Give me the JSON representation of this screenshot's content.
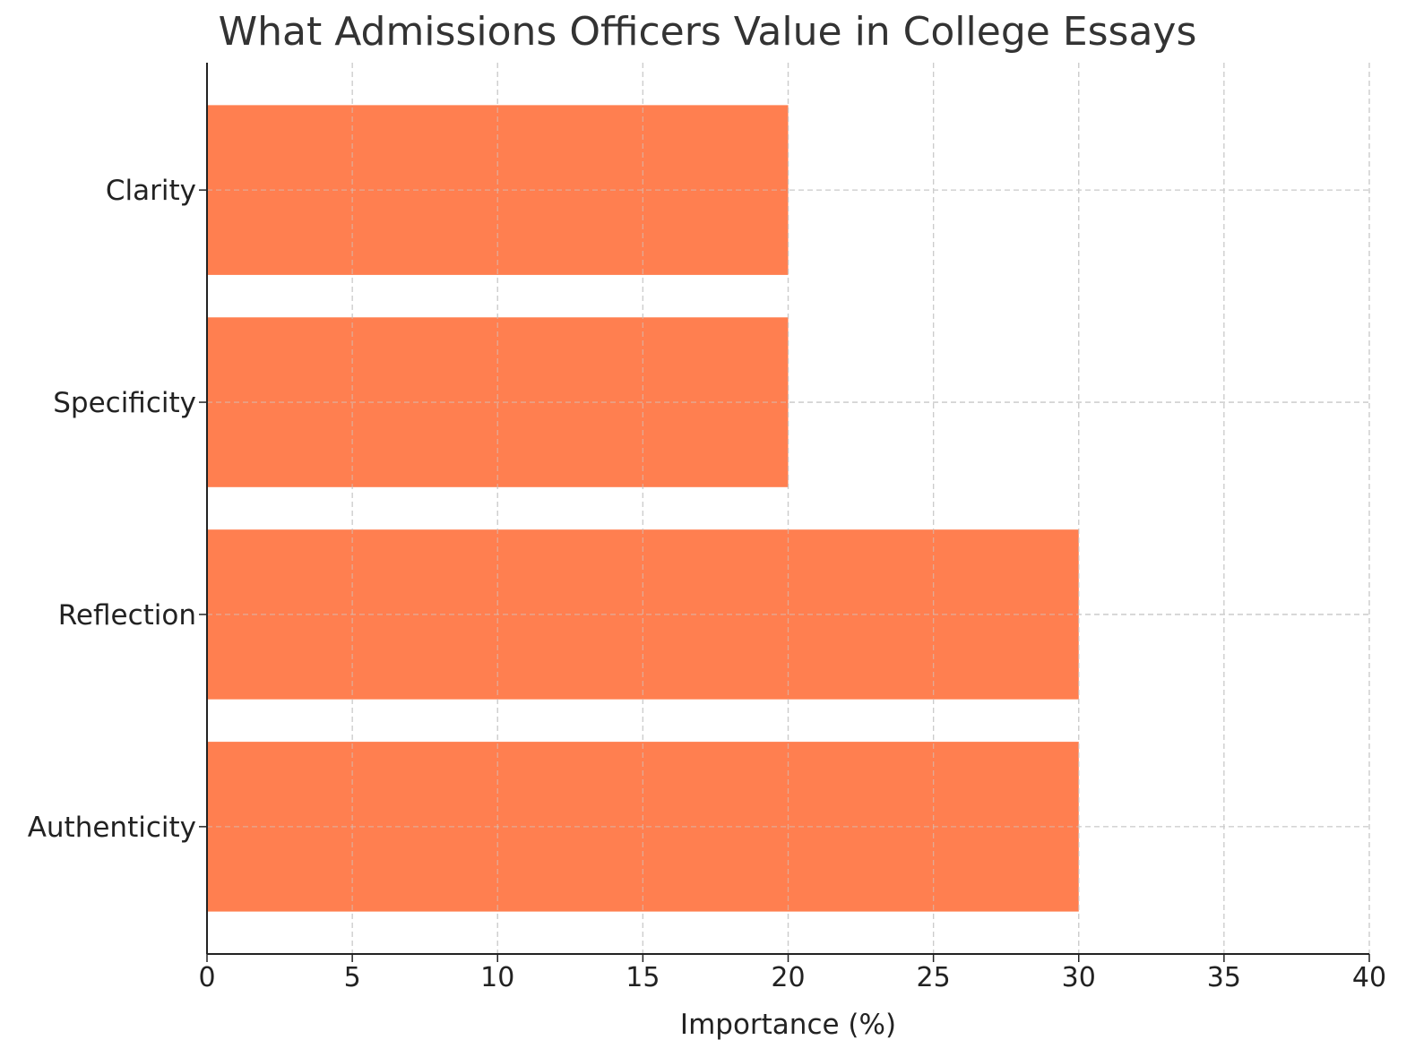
{
  "chart_data": {
    "type": "bar",
    "orientation": "horizontal",
    "title": "What Admissions Officers Value in College Essays",
    "xlabel": "Importance (%)",
    "ylabel": "",
    "categories": [
      "Authenticity",
      "Reflection",
      "Specificity",
      "Clarity"
    ],
    "values": [
      30,
      30,
      20,
      20
    ],
    "xlim": [
      0,
      40
    ],
    "xticks": [
      "0",
      "5",
      "10",
      "15",
      "20",
      "25",
      "30",
      "35",
      "40"
    ],
    "grid": true,
    "bar_color": "#ff7f50"
  }
}
